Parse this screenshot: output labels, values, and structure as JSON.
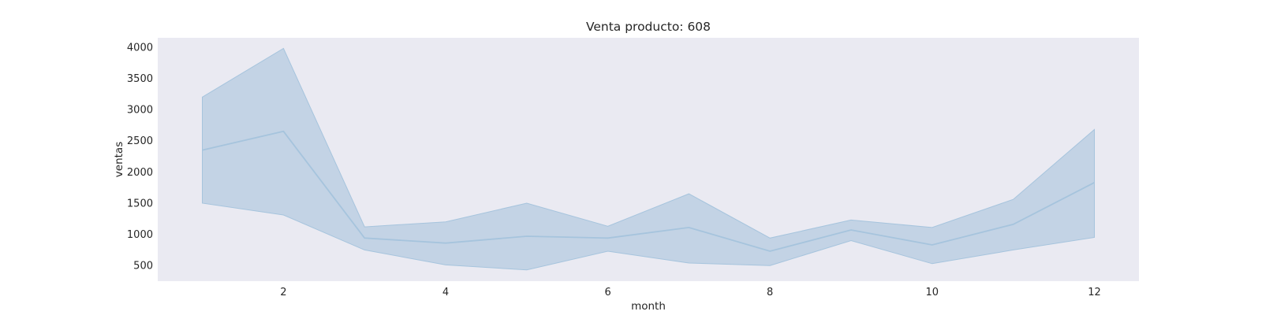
{
  "chart_data": {
    "type": "line",
    "title": "Venta producto: 608",
    "xlabel": "month",
    "ylabel": "ventas",
    "xlim": [
      0.45,
      12.55
    ],
    "ylim": [
      250,
      4150
    ],
    "xticks": [
      2,
      4,
      6,
      8,
      10,
      12
    ],
    "yticks": [
      500,
      1000,
      1500,
      2000,
      2500,
      3000,
      3500,
      4000
    ],
    "grid": false,
    "legend": "none",
    "series": [
      {
        "x": [
          1,
          2,
          3,
          4,
          5,
          6,
          7,
          8,
          9,
          10,
          11,
          12
        ],
        "values": [
          2350,
          2650,
          940,
          860,
          970,
          940,
          1110,
          730,
          1070,
          830,
          1160,
          1830
        ],
        "ci_lower": [
          1500,
          1310,
          750,
          510,
          430,
          730,
          540,
          500,
          900,
          530,
          750,
          950
        ],
        "ci_upper": [
          3200,
          3980,
          1120,
          1200,
          1500,
          1130,
          1650,
          940,
          1230,
          1110,
          1560,
          2680
        ],
        "color": "#a6c4dd",
        "band_color": "#c3d3e5"
      }
    ],
    "background_color": "#eaeaf2"
  }
}
